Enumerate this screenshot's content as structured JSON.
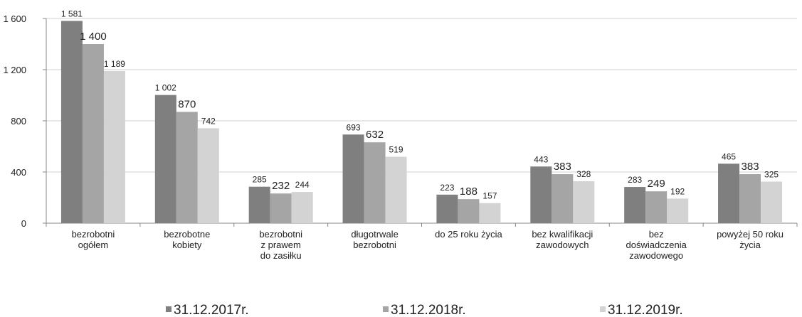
{
  "chart_data": {
    "type": "bar",
    "categories": [
      "bezrobotni\nogółem",
      "bezrobotne\nkobiety",
      "bezrobotni\nz prawem\ndo zasiłku",
      "długotrwale\nbezrobotni",
      "do 25 roku życia",
      "bez kwalifikacji\nzawodowych",
      "bez\ndoświadczenia\nzawodowego",
      "powyżej 50 roku\nżycia"
    ],
    "series": [
      {
        "name": "31.12.2017r.",
        "color": "#7f7f7f",
        "values": [
          1581,
          1002,
          285,
          693,
          223,
          443,
          283,
          465
        ],
        "value_labels": [
          "1 581",
          "1 002",
          "285",
          "693",
          "223",
          "443",
          "283",
          "465"
        ]
      },
      {
        "name": "31.12.2018r.",
        "color": "#a5a5a5",
        "values": [
          1400,
          870,
          232,
          632,
          188,
          383,
          249,
          383
        ],
        "value_labels": [
          "1 400",
          "870",
          "232",
          "632",
          "188",
          "383",
          "249",
          "383"
        ]
      },
      {
        "name": "31.12.2019r.",
        "color": "#d3d3d3",
        "values": [
          1189,
          742,
          244,
          519,
          157,
          328,
          192,
          325
        ],
        "value_labels": [
          "1 189",
          "742",
          "244",
          "519",
          "157",
          "328",
          "192",
          "325"
        ]
      }
    ],
    "ylim": [
      0,
      1600
    ],
    "yticks": [
      0,
      400,
      800,
      {
        "value": 1200,
        "label": "1 200"
      },
      {
        "value": 1600,
        "label": "1 600"
      }
    ],
    "grid": true,
    "legend": "bottom"
  }
}
